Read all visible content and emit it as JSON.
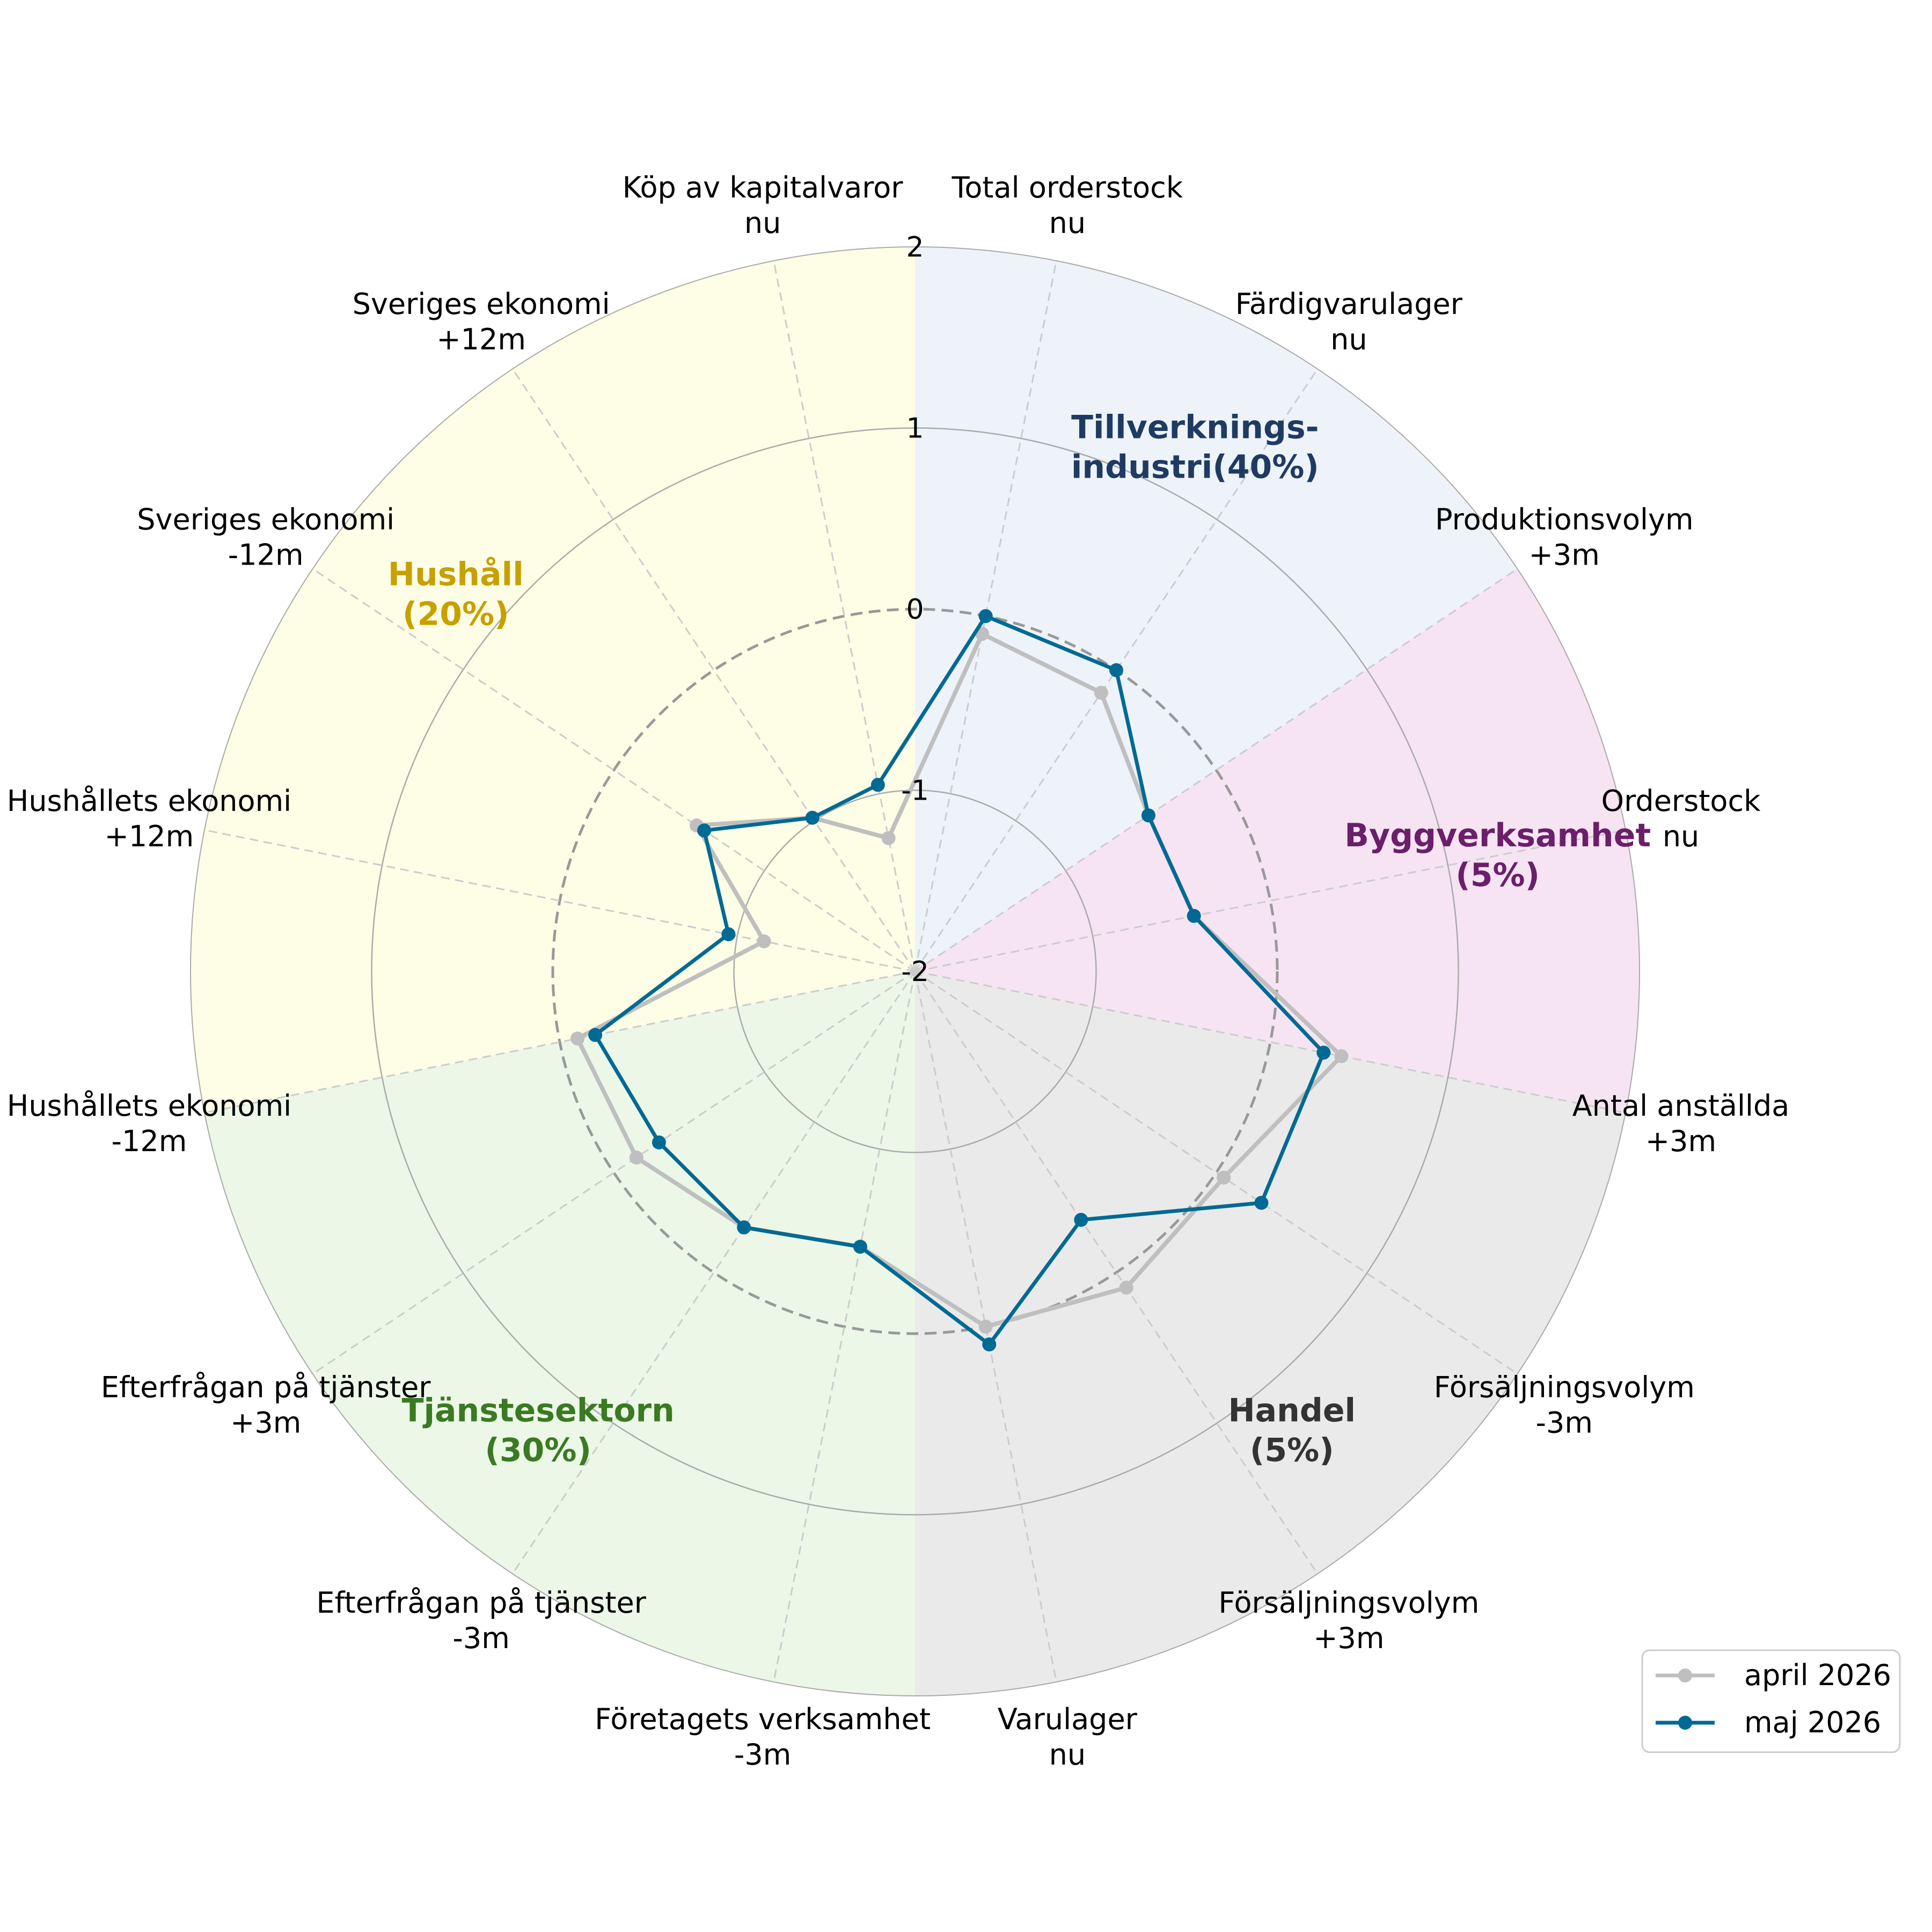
{
  "chart_data": {
    "type": "radar",
    "r_range": [
      -2,
      2
    ],
    "r_ticks": [
      -2,
      -1,
      0,
      1,
      2
    ],
    "zero_ring_dashed": true,
    "grid": true,
    "legend_position": "lower-right",
    "categories": [
      [
        "Total orderstock",
        "nu"
      ],
      [
        "Färdigvarulager",
        "nu"
      ],
      [
        "Produktionsvolym",
        "+3m"
      ],
      [
        "Orderstock",
        "nu"
      ],
      [
        "Antal anställda",
        "+3m"
      ],
      [
        "Försäljningsvolym",
        "-3m"
      ],
      [
        "Försäljningsvolym",
        "+3m"
      ],
      [
        "Varulager",
        "nu"
      ],
      [
        "Företagets verksamhet",
        "-3m"
      ],
      [
        "Efterfrågan på tjänster",
        "-3m"
      ],
      [
        "Efterfrågan på tjänster",
        "+3m"
      ],
      [
        "Hushållets ekonomi",
        "-12m"
      ],
      [
        "Hushållets ekonomi",
        "+12m"
      ],
      [
        "Sveriges ekonomi",
        "-12m"
      ],
      [
        "Sveriges ekonomi",
        "+12m"
      ],
      [
        "Köp av kapitalvaror",
        "nu"
      ]
    ],
    "sectors": [
      {
        "label": [
          "Tillverknings-",
          "industri(40%)"
        ],
        "from_index": 0,
        "to_index": 2.5,
        "color": "#1f3b63",
        "fill": "#dfe9f3"
      },
      {
        "label": [
          "Byggverksamhet",
          "(5%)"
        ],
        "from_index": 2.5,
        "to_index": 4.5,
        "color": "#6b1f6b",
        "fill": "#f0cde8"
      },
      {
        "label": [
          "Handel",
          "(5%)"
        ],
        "from_index": 4.5,
        "to_index": 8,
        "color": "#333333",
        "fill": "#d9d9d9"
      },
      {
        "label": [
          "Tjänstesektorn",
          "(30%)"
        ],
        "from_index": 8,
        "to_index": 11.5,
        "color": "#3a7a22",
        "fill": "#dcf0d4"
      },
      {
        "label": [
          "Hushåll",
          "(20%)"
        ],
        "from_index": 11.5,
        "to_index": 16,
        "color": "#c8a000",
        "fill": "#fefed2"
      }
    ],
    "series": [
      {
        "name": "april 2026",
        "color": "#bfbfbf",
        "values": [
          -0.1,
          -0.15,
          -0.45,
          -0.43,
          0.4,
          0.05,
          0.1,
          0.0,
          -0.45,
          -0.3,
          -0.15,
          -0.1,
          -1.15,
          -0.55,
          -0.98,
          -1.25
        ]
      },
      {
        "name": "maj 2026",
        "color": "#006994",
        "values": [
          0.0,
          0.0,
          -0.45,
          -0.43,
          0.3,
          0.3,
          -0.35,
          0.1,
          -0.45,
          -0.3,
          -0.3,
          -0.2,
          -0.95,
          -0.6,
          -0.98,
          -0.95
        ]
      }
    ]
  }
}
